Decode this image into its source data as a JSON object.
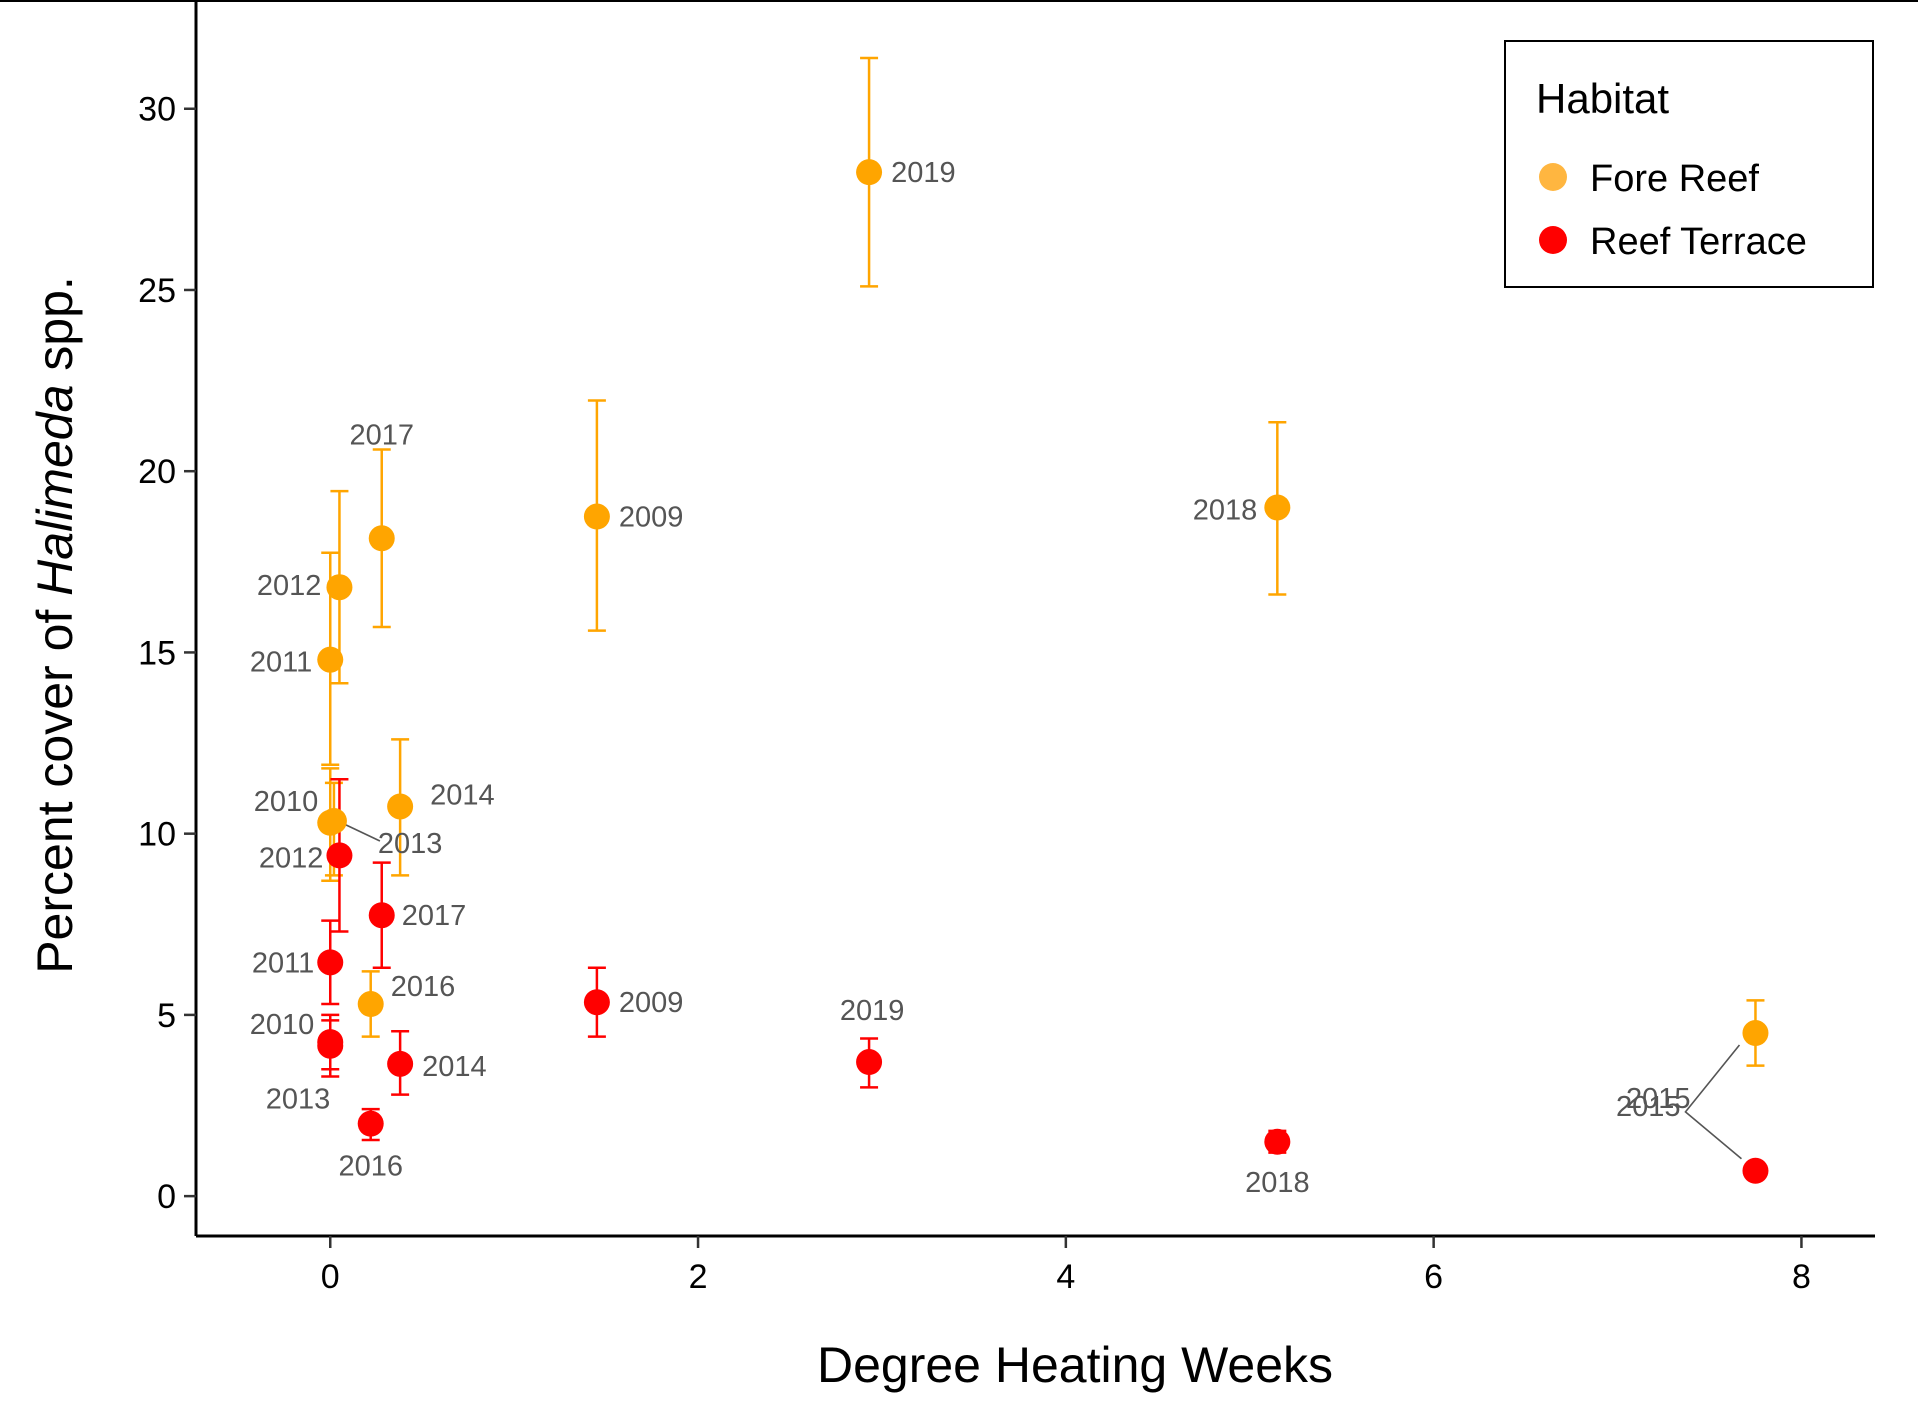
{
  "chart_data": {
    "type": "scatter",
    "xlabel": "Degree Heating Weeks",
    "ylabel_parts": [
      "Percent cover of ",
      "Halimeda",
      " spp."
    ],
    "xlim": [
      -0.73,
      8.4
    ],
    "ylim": [
      -1.1,
      33.0
    ],
    "x_ticks": [
      0,
      2,
      4,
      6,
      8
    ],
    "y_ticks": [
      0,
      5,
      10,
      15,
      20,
      25,
      30
    ],
    "grid": false,
    "legend": {
      "title": "Habitat",
      "placement": "top-right",
      "entries": [
        "Fore Reef",
        "Reef Terrace"
      ]
    },
    "series": [
      {
        "name": "Fore Reef",
        "color": "#FFA500",
        "points": [
          {
            "year": "2009",
            "x": 1.45,
            "y": 18.75,
            "lo": 15.6,
            "hi": 21.95
          },
          {
            "year": "2010",
            "x": 0.0,
            "y": 10.3,
            "lo": 8.7,
            "hi": 11.8
          },
          {
            "year": "2011",
            "x": 0.0,
            "y": 14.8,
            "lo": 11.9,
            "hi": 17.75
          },
          {
            "year": "2012",
            "x": 0.05,
            "y": 16.8,
            "lo": 14.15,
            "hi": 19.45
          },
          {
            "year": "2013",
            "x": 0.02,
            "y": 10.35,
            "lo": 8.85,
            "hi": 11.4
          },
          {
            "year": "2014",
            "x": 0.38,
            "y": 10.75,
            "lo": 8.85,
            "hi": 12.6
          },
          {
            "year": "2015",
            "x": 7.75,
            "y": 4.5,
            "lo": 3.6,
            "hi": 5.4
          },
          {
            "year": "2016",
            "x": 0.22,
            "y": 5.3,
            "lo": 4.4,
            "hi": 6.2
          },
          {
            "year": "2017",
            "x": 0.28,
            "y": 18.15,
            "lo": 15.7,
            "hi": 20.6
          },
          {
            "year": "2018",
            "x": 5.15,
            "y": 19.0,
            "lo": 16.6,
            "hi": 21.35
          },
          {
            "year": "2019",
            "x": 2.93,
            "y": 28.25,
            "lo": 25.1,
            "hi": 31.4
          }
        ]
      },
      {
        "name": "Reef Terrace",
        "color": "#FF0000",
        "points": [
          {
            "year": "2009",
            "x": 1.45,
            "y": 5.35,
            "lo": 4.4,
            "hi": 6.3
          },
          {
            "year": "2010",
            "x": 0.0,
            "y": 4.25,
            "lo": 3.5,
            "hi": 5.0
          },
          {
            "year": "2011",
            "x": 0.0,
            "y": 6.45,
            "lo": 5.3,
            "hi": 7.6
          },
          {
            "year": "2012",
            "x": 0.05,
            "y": 9.4,
            "lo": 7.3,
            "hi": 11.5
          },
          {
            "year": "2013",
            "x": 0.0,
            "y": 4.15,
            "lo": 3.3,
            "hi": 4.85
          },
          {
            "year": "2014",
            "x": 0.38,
            "y": 3.65,
            "lo": 2.8,
            "hi": 4.55
          },
          {
            "year": "2015",
            "x": 7.75,
            "y": 0.7,
            "lo": 0.7,
            "hi": 0.7
          },
          {
            "year": "2016",
            "x": 0.22,
            "y": 2.0,
            "lo": 1.55,
            "hi": 2.4
          },
          {
            "year": "2017",
            "x": 0.28,
            "y": 7.75,
            "lo": 6.3,
            "hi": 9.2
          },
          {
            "year": "2018",
            "x": 5.15,
            "y": 1.5,
            "lo": 1.2,
            "hi": 1.8
          },
          {
            "year": "2019",
            "x": 2.93,
            "y": 3.7,
            "lo": 3.0,
            "hi": 4.35
          }
        ]
      }
    ]
  }
}
